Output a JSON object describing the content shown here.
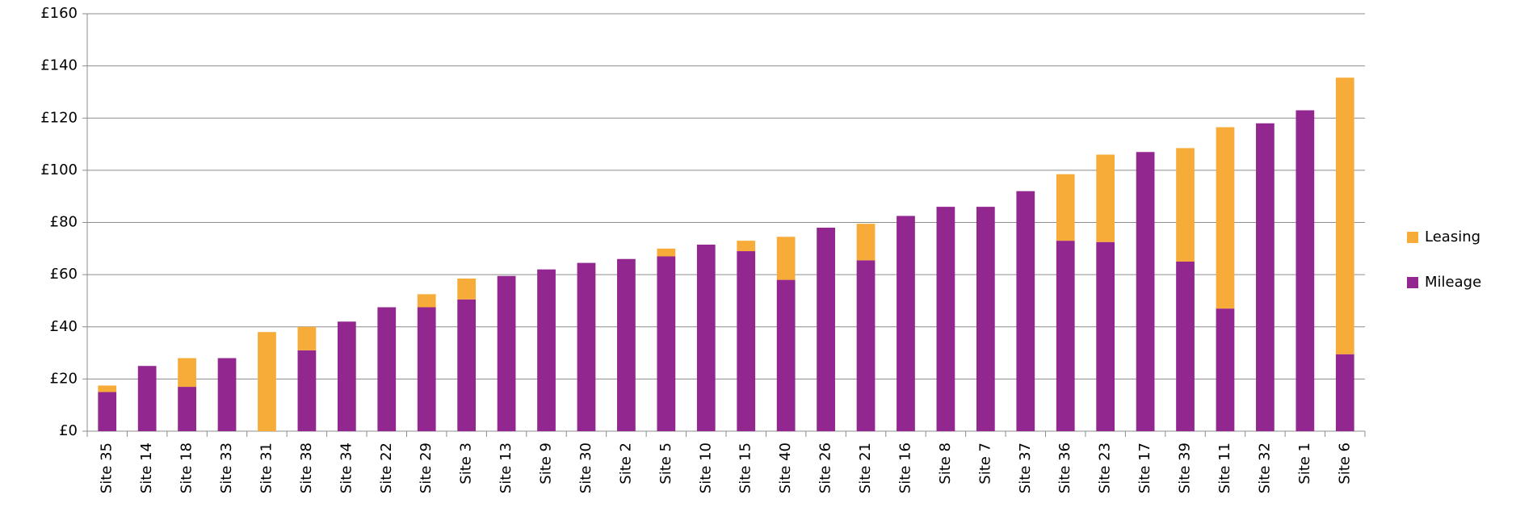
{
  "chart_data": {
    "type": "stacked_bar",
    "categories": [
      "Site 35",
      "Site 14",
      "Site 18",
      "Site 33",
      "Site 31",
      "Site 38",
      "Site 34",
      "Site 22",
      "Site 29",
      "Site 3",
      "Site 13",
      "Site 9",
      "Site 30",
      "Site 2",
      "Site 5",
      "Site 10",
      "Site 15",
      "Site 40",
      "Site 26",
      "Site 21",
      "Site 16",
      "Site 8",
      "Site 7",
      "Site 37",
      "Site 36",
      "Site 23",
      "Site 17",
      "Site 39",
      "Site 11",
      "Site 32",
      "Site 1",
      "Site 6"
    ],
    "series": [
      {
        "name": "Mileage",
        "color": "#92278f",
        "values": [
          15,
          25,
          17,
          28,
          0,
          31,
          42,
          47.5,
          47.5,
          50.5,
          59.5,
          62,
          64.5,
          66,
          67,
          71.5,
          69,
          58,
          78,
          65.5,
          82.5,
          86,
          86,
          92,
          73,
          72.5,
          107,
          65,
          47,
          118,
          123,
          29.5
        ]
      },
      {
        "name": "Leasing",
        "color": "#f7ac3a",
        "values": [
          2.5,
          0,
          11,
          0,
          38,
          9,
          0,
          0,
          5,
          8,
          0,
          0,
          0,
          0,
          3,
          0,
          4,
          16.5,
          0,
          14,
          0,
          0,
          0,
          0,
          25.5,
          33.5,
          0,
          43.5,
          69.5,
          0,
          0,
          106
        ]
      }
    ],
    "ylim": [
      0,
      160
    ],
    "yticks": [
      {
        "value": 0,
        "label": "£0"
      },
      {
        "value": 20,
        "label": "£20"
      },
      {
        "value": 40,
        "label": "£40"
      },
      {
        "value": 60,
        "label": "£60"
      },
      {
        "value": 80,
        "label": "£80"
      },
      {
        "value": 100,
        "label": "£100"
      },
      {
        "value": 120,
        "label": "£120"
      },
      {
        "value": 140,
        "label": "£140"
      },
      {
        "value": 160,
        "label": "£160"
      }
    ],
    "grid": true,
    "legend": "right"
  }
}
